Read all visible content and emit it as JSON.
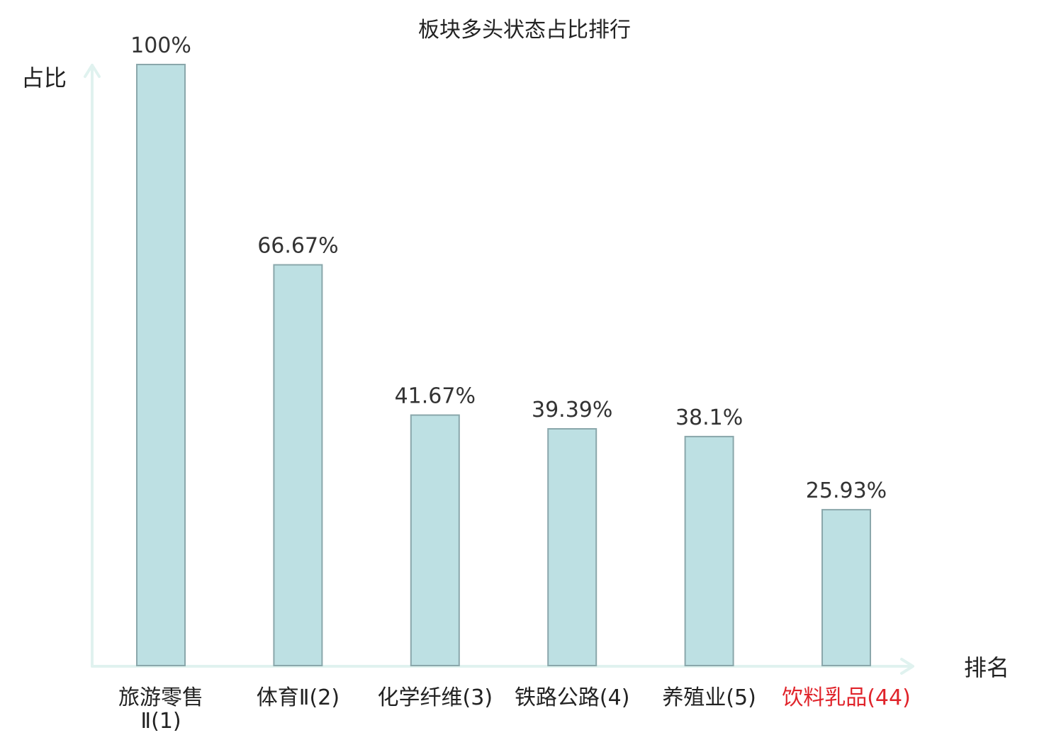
{
  "chart_data": {
    "type": "bar",
    "title": "板块多头状态占比排行",
    "xlabel": "排名",
    "ylabel": "占比",
    "ylim": [
      0,
      100
    ],
    "grid": false,
    "legend": "none",
    "categories": [
      [
        "旅游零售",
        "Ⅱ(1)"
      ],
      [
        "体育Ⅱ(2)"
      ],
      [
        "化学纤维(3)"
      ],
      [
        "铁路公路(4)"
      ],
      [
        "养殖业(5)"
      ],
      [
        "饮料乳品(44)"
      ]
    ],
    "values": [
      100,
      66.67,
      41.67,
      39.39,
      38.1,
      25.93
    ],
    "value_labels": [
      "100%",
      "66.67%",
      "41.67%",
      "39.39%",
      "38.1%",
      "25.93%"
    ],
    "highlight_index": 5,
    "colors": {
      "bar_fill": "#bde0e3",
      "bar_stroke": "#8aa7ab",
      "axis": "#e0f2ef",
      "text": "#333333",
      "label_text": "#222222",
      "highlight": "#e0242b"
    }
  }
}
